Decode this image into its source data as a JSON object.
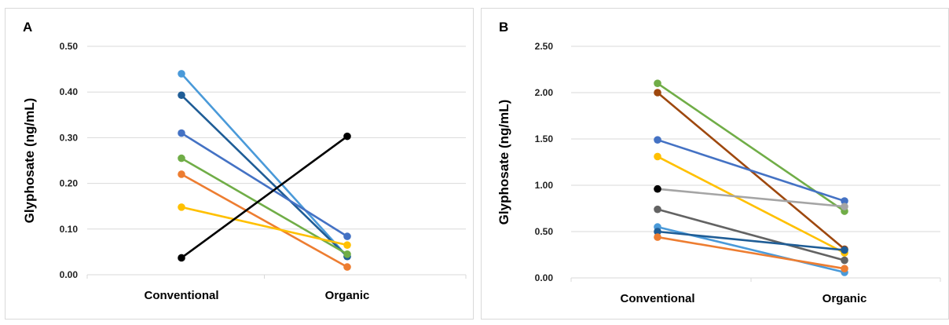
{
  "chart_data": [
    {
      "type": "line",
      "panel_label": "A",
      "categories": [
        "Conventional",
        "Organic"
      ],
      "ylabel": "Glyphosate (ng/mL)",
      "ylim": [
        0,
        0.5
      ],
      "yticks": [
        "0.00",
        "0.10",
        "0.20",
        "0.30",
        "0.40",
        "0.50"
      ],
      "grid": true,
      "series": [
        {
          "color": "#4a9ad9",
          "values": [
            0.44,
            0.04
          ]
        },
        {
          "color": "#1f5d96",
          "values": [
            0.393,
            0.04
          ]
        },
        {
          "color": "#4472c4",
          "values": [
            0.31,
            0.084
          ]
        },
        {
          "color": "#70ad47",
          "values": [
            0.255,
            0.045
          ]
        },
        {
          "color": "#ed7d31",
          "values": [
            0.22,
            0.017
          ]
        },
        {
          "color": "#ffc000",
          "values": [
            0.148,
            0.065
          ]
        },
        {
          "color": "#000000",
          "values": [
            0.037,
            0.303
          ]
        }
      ]
    },
    {
      "type": "line",
      "panel_label": "B",
      "categories": [
        "Conventional",
        "Organic"
      ],
      "ylabel": "Glyphosate (ng/mL)",
      "ylim": [
        0,
        2.5
      ],
      "yticks": [
        "0.00",
        "0.50",
        "1.00",
        "1.50",
        "2.00",
        "2.50"
      ],
      "grid": true,
      "series": [
        {
          "color": "#70ad47",
          "values": [
            2.1,
            0.72
          ]
        },
        {
          "color": "#9e480e",
          "values": [
            2.0,
            0.31
          ]
        },
        {
          "color": "#4472c4",
          "values": [
            1.49,
            0.83
          ]
        },
        {
          "color": "#ffc000",
          "values": [
            1.31,
            0.27
          ]
        },
        {
          "color": "#a5a5a5",
          "values": [
            0.96,
            0.77
          ]
        },
        {
          "color": "#636363",
          "values": [
            0.74,
            0.19
          ]
        },
        {
          "color": "#4a9ad9",
          "values": [
            0.55,
            0.06
          ]
        },
        {
          "color": "#1f5d96",
          "values": [
            0.5,
            0.3
          ]
        },
        {
          "color": "#ed7d31",
          "values": [
            0.44,
            0.1
          ]
        }
      ],
      "extra_marker": {
        "color": "#000000",
        "category": "Conventional",
        "value": 0.96
      }
    }
  ]
}
